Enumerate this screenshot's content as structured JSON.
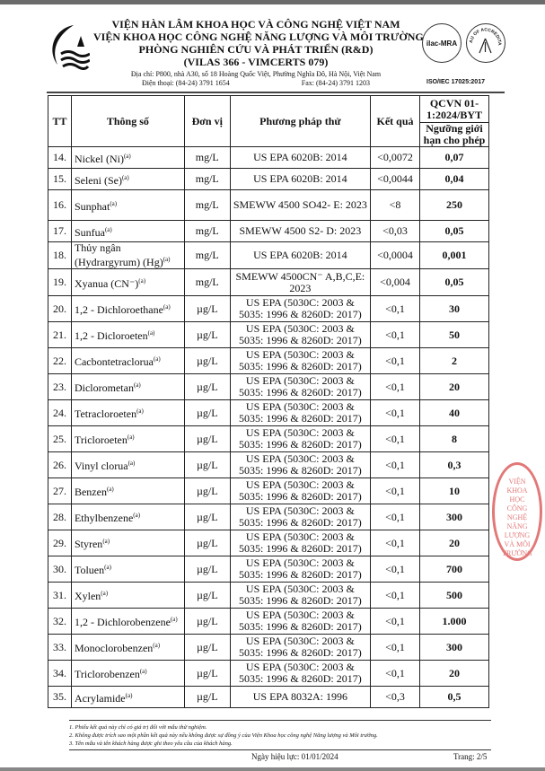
{
  "header": {
    "line1": "VIỆN HÀN LÂM KHOA HỌC VÀ CÔNG NGHỆ VIỆT NAM",
    "line2": "VIỆN KHOA HỌC CÔNG NGHỆ NĂNG LƯỢNG VÀ MÔI TRƯỜNG",
    "line3": "PHÒNG NGHIÊN CỨU VÀ PHÁT TRIỂN (R&D)",
    "line4": "(VILAS 366 - VIMCERTS 079)",
    "address": "Địa chỉ: P800, nhà A30, số 18 Hoàng Quốc Việt, Phường Nghĩa Đô, Hà Nội, Việt Nam",
    "phone": "Điện thoại: (84-24) 3791 1654",
    "fax": "Fax: (84-24) 3791 1203",
    "ilac": "ilac-MRA",
    "boa": "BUREAU OF ACCREDITATION",
    "iso": "ISO/IEC 17025:2017"
  },
  "table": {
    "headers": {
      "tt": "TT",
      "param": "Thông số",
      "unit": "Đơn vị",
      "method": "Phương pháp thử",
      "result": "Kết quả",
      "standard": "QCVN 01-1:2024/BYT",
      "limit": "Ngưỡng giới hạn cho phép"
    },
    "rows": [
      {
        "tt": "14.",
        "name": "Nickel (Ni)",
        "sup": "(a)",
        "unit": "mg/L",
        "method": "US EPA 6020B: 2014",
        "result": "<0,0072",
        "limit": "0,07"
      },
      {
        "tt": "15.",
        "name": "Seleni (Se)",
        "sup": "(a)",
        "unit": "mg/L",
        "method": "US EPA 6020B: 2014",
        "result": "<0,0044",
        "limit": "0,04"
      },
      {
        "tt": "16.",
        "name": "Sunphat",
        "sup": "(a)",
        "unit": "mg/L",
        "method": "SMEWW 4500 SO42- E: 2023",
        "result": "<8",
        "limit": "250"
      },
      {
        "tt": "17.",
        "name": "Sunfua",
        "sup": "(a)",
        "unit": "mg/L",
        "method": "SMEWW 4500 S2- D: 2023",
        "result": "<0,03",
        "limit": "0,05"
      },
      {
        "tt": "18.",
        "name": "Thủy ngân (Hydrargyrum) (Hg)",
        "sup": "(a)",
        "unit": "mg/L",
        "method": "US EPA 6020B: 2014",
        "result": "<0,0004",
        "limit": "0,001"
      },
      {
        "tt": "19.",
        "name": "Xyanua (CN⁻)",
        "sup": "(a)",
        "unit": "mg/L",
        "method": "SMEWW 4500CN⁻ A,B,C,E: 2023",
        "result": "<0,004",
        "limit": "0,05"
      },
      {
        "tt": "20.",
        "name": "1,2 - Dichloroethane",
        "sup": "(a)",
        "unit": "µg/L",
        "method": "US EPA (5030C: 2003 & 5035: 1996 & 8260D: 2017)",
        "result": "<0,1",
        "limit": "30"
      },
      {
        "tt": "21.",
        "name": "1,2 - Dicloroeten",
        "sup": "(a)",
        "unit": "µg/L",
        "method": "US EPA (5030C: 2003 & 5035: 1996 & 8260D: 2017)",
        "result": "<0,1",
        "limit": "50"
      },
      {
        "tt": "22.",
        "name": "Cacbontetraclorua",
        "sup": "(a)",
        "unit": "µg/L",
        "method": "US EPA (5030C: 2003 & 5035: 1996 & 8260D: 2017)",
        "result": "<0,1",
        "limit": "2"
      },
      {
        "tt": "23.",
        "name": "Diclorometan",
        "sup": "(a)",
        "unit": "µg/L",
        "method": "US EPA (5030C: 2003 & 5035: 1996 & 8260D: 2017)",
        "result": "<0,1",
        "limit": "20"
      },
      {
        "tt": "24.",
        "name": "Tetracloroeten",
        "sup": "(a)",
        "unit": "µg/L",
        "method": "US EPA (5030C: 2003 & 5035: 1996 & 8260D: 2017)",
        "result": "<0,1",
        "limit": "40"
      },
      {
        "tt": "25.",
        "name": "Tricloroeten",
        "sup": "(a)",
        "unit": "µg/L",
        "method": "US EPA (5030C: 2003 & 5035: 1996 & 8260D: 2017)",
        "result": "<0,1",
        "limit": "8"
      },
      {
        "tt": "26.",
        "name": "Vinyl clorua",
        "sup": "(a)",
        "unit": "µg/L",
        "method": "US EPA (5030C: 2003 & 5035: 1996 & 8260D: 2017)",
        "result": "<0,1",
        "limit": "0,3"
      },
      {
        "tt": "27.",
        "name": "Benzen",
        "sup": "(a)",
        "unit": "µg/L",
        "method": "US EPA (5030C: 2003 & 5035: 1996 & 8260D: 2017)",
        "result": "<0,1",
        "limit": "10"
      },
      {
        "tt": "28.",
        "name": "Ethylbenzene",
        "sup": "(a)",
        "unit": "µg/L",
        "method": "US EPA (5030C: 2003 & 5035: 1996 & 8260D: 2017)",
        "result": "<0,1",
        "limit": "300"
      },
      {
        "tt": "29.",
        "name": "Styren",
        "sup": "(a)",
        "unit": "µg/L",
        "method": "US EPA (5030C: 2003 & 5035: 1996 & 8260D: 2017)",
        "result": "<0,1",
        "limit": "20"
      },
      {
        "tt": "30.",
        "name": "Toluen",
        "sup": "(a)",
        "unit": "µg/L",
        "method": "US EPA (5030C: 2003 & 5035: 1996 & 8260D: 2017)",
        "result": "<0,1",
        "limit": "700"
      },
      {
        "tt": "31.",
        "name": "Xylen",
        "sup": "(a)",
        "unit": "µg/L",
        "method": "US EPA (5030C: 2003 & 5035: 1996 & 8260D: 2017)",
        "result": "<0,1",
        "limit": "500"
      },
      {
        "tt": "32.",
        "name": "1,2 - Dichlorobenzene",
        "sup": "(a)",
        "unit": "µg/L",
        "method": "US EPA (5030C: 2003 & 5035: 1996 & 8260D: 2017)",
        "result": "<0,1",
        "limit": "1.000"
      },
      {
        "tt": "33.",
        "name": "Monoclorobenzen",
        "sup": "(a)",
        "unit": "µg/L",
        "method": "US EPA (5030C: 2003 & 5035: 1996 & 8260D: 2017)",
        "result": "<0,1",
        "limit": "300"
      },
      {
        "tt": "34.",
        "name": "Triclorobenzen",
        "sup": "(a)",
        "unit": "µg/L",
        "method": "US EPA (5030C: 2003 & 5035: 1996 & 8260D: 2017)",
        "result": "<0,1",
        "limit": "20"
      },
      {
        "tt": "35.",
        "name": "Acrylamide",
        "sup": "(a)",
        "unit": "µg/L",
        "method": "US EPA 8032A: 1996",
        "result": "<0,3",
        "limit": "0,5"
      }
    ]
  },
  "stamp": "VIỆN KHOA HỌC CÔNG NGHỆ NĂNG LƯỢNG VÀ MÔI TRƯỜNG",
  "footer": {
    "notes": [
      "1. Phiếu kết quả này chỉ có giá trị đối với mẫu thử nghiệm.",
      "2. Không được trích sao một phần kết quả này nếu không được sự đồng ý của Viện Khoa học công nghệ Năng lượng và Môi trường.",
      "3. Tên mẫu và tên khách hàng được ghi theo yêu cầu của khách hàng."
    ],
    "effective": "Ngày hiệu lực: 01/01/2024",
    "page": "Trang: 2/5"
  }
}
